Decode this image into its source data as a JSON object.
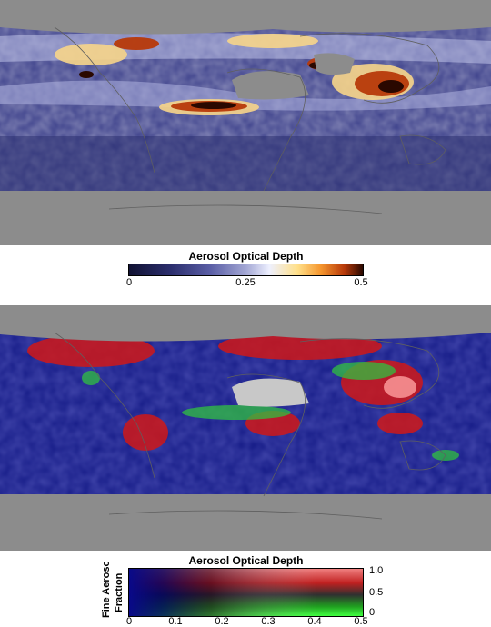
{
  "top_panel": {
    "colorbar_title": "Aerosol Optical Depth",
    "ticks": [
      "0",
      "0.25",
      "0.5"
    ]
  },
  "bottom_panel": {
    "colorbar_title": "Aerosol Optical Depth",
    "x_ticks": [
      "0",
      "0.1",
      "0.2",
      "0.3",
      "0.4",
      "0.5"
    ],
    "y_label_line1": "Fine Aerosol",
    "y_label_line2": "Fraction",
    "y_ticks": [
      "1.0",
      "0.5",
      "0"
    ]
  },
  "colors": {
    "no_data_gray": "#8c8c8c",
    "low_aod": "#2c2f6e",
    "high_aod": "#b83a0a",
    "fine": "#ff2020",
    "coarse": "#30ff30"
  }
}
